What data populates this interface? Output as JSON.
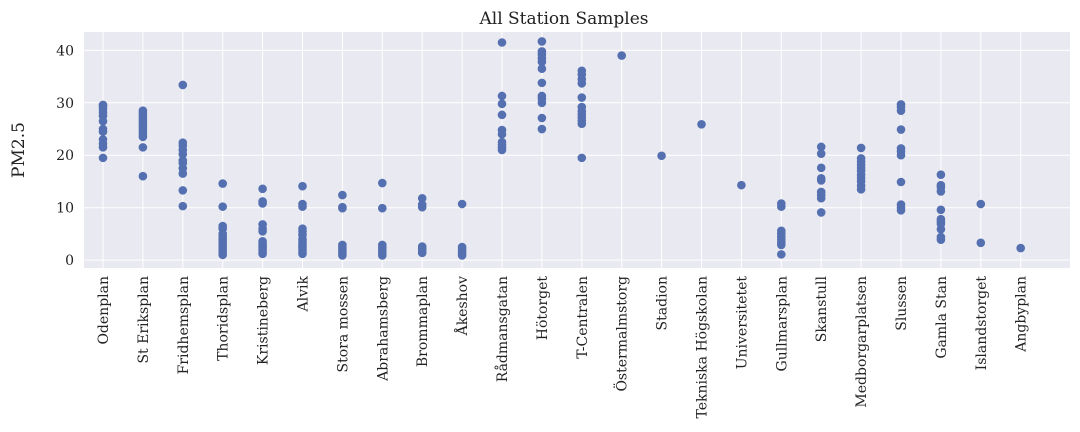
{
  "chart_data": {
    "type": "scatter",
    "title": "All Station Samples",
    "xlabel": "",
    "ylabel": "PM2.5",
    "ylim": [
      -1.5,
      43.5
    ],
    "yticks": [
      0,
      10,
      20,
      30,
      40
    ],
    "grid": true,
    "background": "#e9e9f1",
    "marker_color": "#5470b0",
    "categories": [
      "Odenplan",
      "St Eriksplan",
      "Fridhemsplan",
      "Thoridsplan",
      "Kristineberg",
      "Alvik",
      "Stora mossen",
      "Abrahamsberg",
      "Brommaplan",
      "Åkeshov",
      "Rådmansgatan",
      "Hötorget",
      "T-Centralen",
      "Östermalmstorg",
      "Stadion",
      "Tekniska Högskolan",
      "Universitetet",
      "Gullmarsplan",
      "Skanstull",
      "Medborgarplatsen",
      "Slussen",
      "Gamla Stan",
      "Islandstorget",
      "Angbyplan"
    ],
    "values": [
      [
        19.5,
        21.5,
        22.2,
        23.0,
        24.5,
        25.0,
        26.5,
        27.5,
        28.2,
        28.8,
        29.3,
        29.6
      ],
      [
        16.0,
        21.5,
        23.5,
        24.0,
        24.5,
        25.0,
        25.5,
        26.0,
        26.5,
        27.0,
        27.5,
        28.0,
        28.5
      ],
      [
        10.3,
        13.3,
        16.5,
        17.5,
        18.5,
        19.0,
        20.2,
        21.0,
        21.8,
        22.4,
        33.4
      ],
      [
        1.0,
        1.5,
        2.0,
        2.5,
        3.0,
        3.5,
        4.0,
        4.5,
        5.0,
        6.0,
        6.5,
        10.2,
        14.6
      ],
      [
        1.2,
        1.6,
        2.0,
        2.4,
        2.8,
        3.2,
        3.6,
        5.5,
        6.0,
        6.8,
        10.8,
        11.2,
        13.6
      ],
      [
        1.2,
        1.6,
        2.0,
        2.4,
        2.8,
        3.2,
        3.6,
        4.0,
        4.8,
        5.5,
        6.0,
        10.2,
        10.7,
        14.1
      ],
      [
        0.9,
        1.3,
        1.7,
        2.1,
        2.5,
        2.9,
        9.9,
        10.1,
        12.4
      ],
      [
        0.9,
        1.4,
        1.9,
        2.4,
        2.9,
        9.9,
        14.7
      ],
      [
        1.4,
        1.8,
        2.2,
        2.6,
        10.1,
        10.6,
        11.8
      ],
      [
        0.9,
        1.3,
        1.7,
        2.1,
        2.5,
        10.7
      ],
      [
        21.0,
        21.5,
        22.0,
        22.5,
        24.0,
        24.8,
        27.7,
        29.8,
        31.3,
        41.5
      ],
      [
        25.0,
        27.1,
        30.0,
        30.8,
        31.3,
        33.8,
        36.5,
        37.8,
        38.5,
        39.2,
        39.8,
        41.7
      ],
      [
        19.5,
        26.0,
        26.6,
        27.2,
        27.8,
        28.4,
        29.2,
        31.0,
        33.7,
        34.5,
        35.4,
        36.1
      ],
      [
        39.0
      ],
      [
        19.9
      ],
      [
        25.9
      ],
      [
        14.3
      ],
      [
        1.1,
        2.9,
        3.4,
        3.9,
        4.4,
        5.0,
        5.6,
        10.2,
        10.8
      ],
      [
        9.1,
        11.8,
        12.4,
        13.0,
        15.2,
        15.6,
        17.6,
        20.3,
        21.6
      ],
      [
        13.5,
        14.2,
        15.0,
        15.7,
        16.3,
        17.0,
        17.6,
        18.2,
        18.8,
        19.4,
        21.4
      ],
      [
        9.5,
        10.0,
        10.6,
        14.9,
        20.0,
        20.7,
        21.3,
        24.9,
        28.5,
        29.2,
        29.7
      ],
      [
        3.9,
        4.4,
        5.9,
        6.9,
        7.4,
        7.8,
        9.6,
        13.1,
        13.9,
        14.3,
        16.3
      ],
      [
        3.3,
        10.7
      ],
      [
        2.3
      ]
    ]
  }
}
